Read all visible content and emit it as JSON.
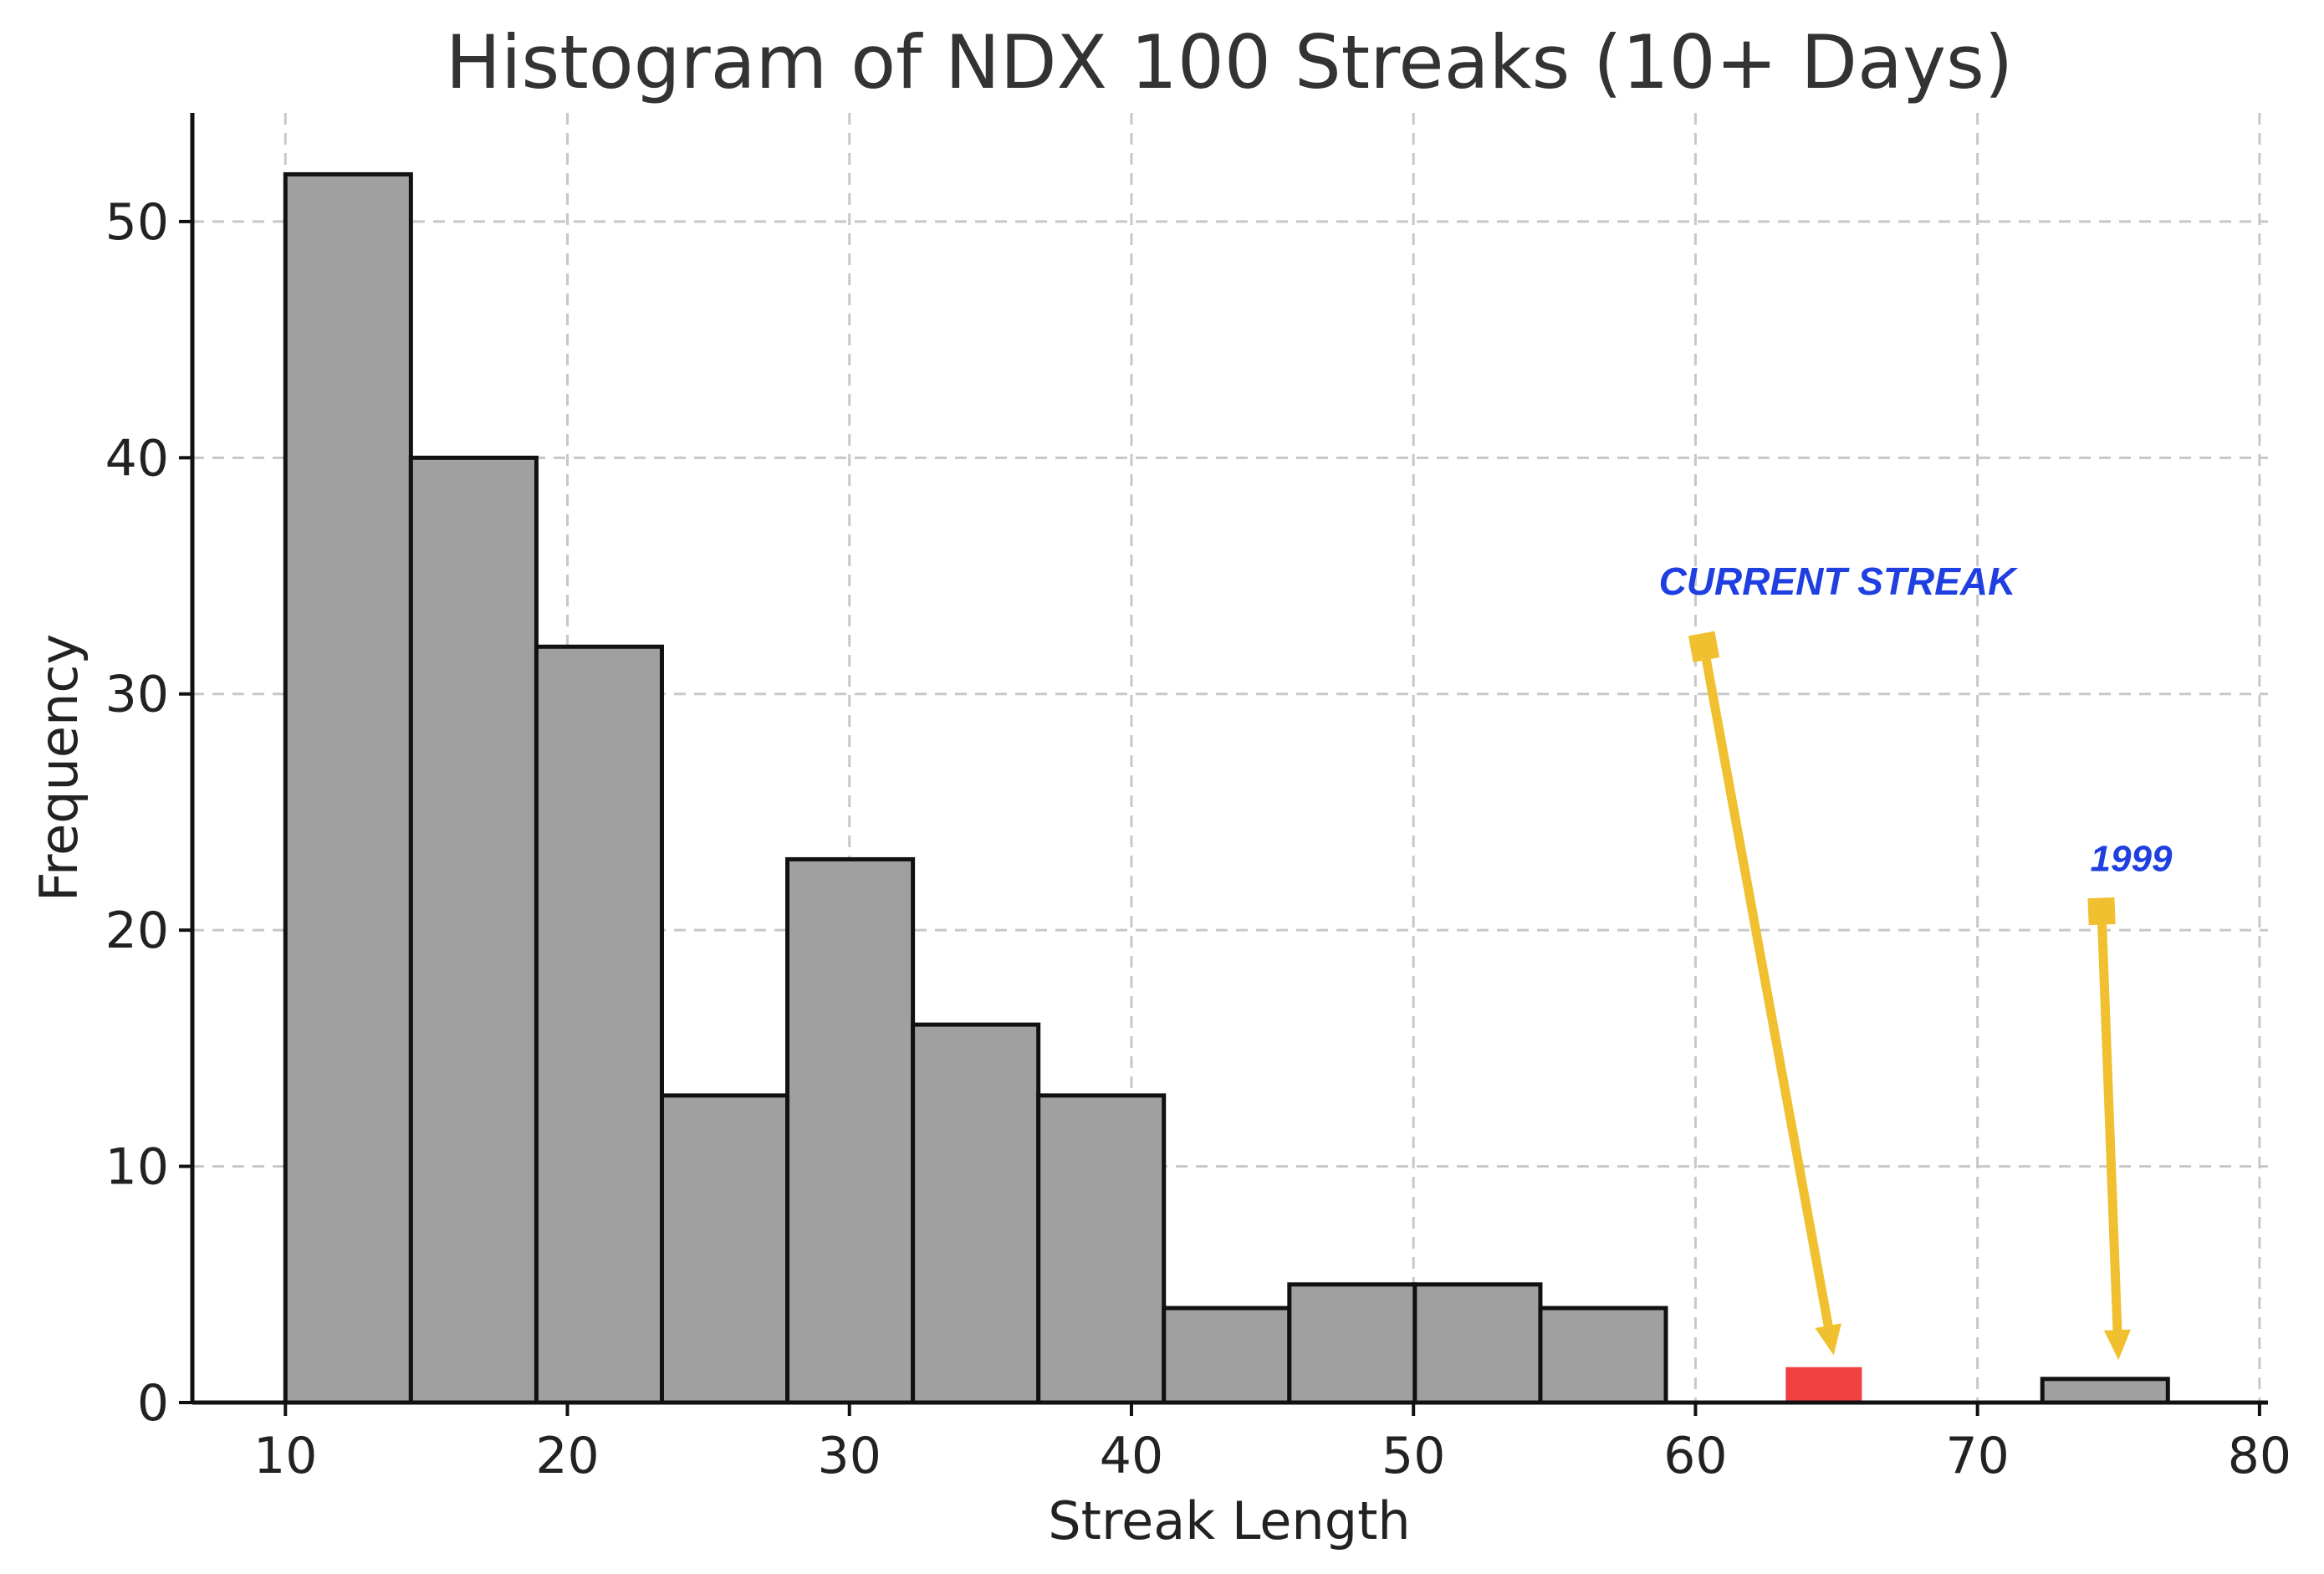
{
  "chart_data": {
    "type": "bar",
    "title": "Histogram of NDX 100 Streaks (10+ Days)",
    "xlabel": "Streak Length",
    "ylabel": "Frequency",
    "xlim": [
      6.7,
      80.3
    ],
    "ylim": [
      0,
      54.6
    ],
    "xticks": [
      10,
      20,
      30,
      40,
      50,
      60,
      70,
      80
    ],
    "yticks": [
      0,
      10,
      20,
      30,
      40,
      50
    ],
    "grid": true,
    "bins": [
      {
        "x0": 10.0,
        "x1": 14.45,
        "count": 52
      },
      {
        "x0": 14.45,
        "x1": 18.9,
        "count": 40
      },
      {
        "x0": 18.9,
        "x1": 23.35,
        "count": 32
      },
      {
        "x0": 23.35,
        "x1": 27.8,
        "count": 13
      },
      {
        "x0": 27.8,
        "x1": 32.25,
        "count": 23
      },
      {
        "x0": 32.25,
        "x1": 36.7,
        "count": 16
      },
      {
        "x0": 36.7,
        "x1": 41.15,
        "count": 13
      },
      {
        "x0": 41.15,
        "x1": 45.6,
        "count": 4
      },
      {
        "x0": 45.6,
        "x1": 50.05,
        "count": 5
      },
      {
        "x0": 50.05,
        "x1": 54.5,
        "count": 5
      },
      {
        "x0": 54.5,
        "x1": 58.95,
        "count": 4
      },
      {
        "x0": 72.3,
        "x1": 76.75,
        "count": 1
      }
    ],
    "highlight": {
      "x0": 63.2,
      "x1": 65.9,
      "count": 1.5,
      "color": "#f04040"
    },
    "annotations": [
      {
        "text": "CURRENT STREAK",
        "text_x": 58.7,
        "text_y": 34.2,
        "arrow_from": [
          60.3,
          32.0
        ],
        "arrow_to": [
          64.9,
          2.0
        ],
        "color": "#1f3fe0",
        "arrow_color": "#f0c030"
      },
      {
        "text": "1999",
        "text_x": 74.0,
        "text_y": 22.5,
        "arrow_from": [
          74.4,
          20.8
        ],
        "arrow_to": [
          75.0,
          1.8
        ],
        "color": "#1f3fe0",
        "arrow_color": "#f0c030"
      }
    ]
  }
}
